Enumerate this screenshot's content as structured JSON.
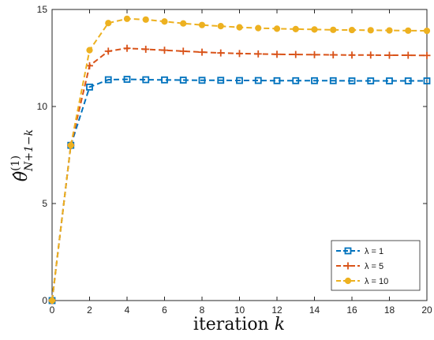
{
  "chart_data": {
    "type": "line",
    "xlabel": "iteration k",
    "ylabel": "θ̂(1) N+1−k",
    "xlim": [
      0,
      20
    ],
    "ylim": [
      0,
      15
    ],
    "xticks": [
      0,
      2,
      4,
      6,
      8,
      10,
      12,
      14,
      16,
      18,
      20
    ],
    "yticks": [
      0,
      5,
      10,
      15
    ],
    "grid": false,
    "legend_position": "bottom-right",
    "x": [
      0,
      1,
      2,
      3,
      4,
      5,
      6,
      7,
      8,
      9,
      10,
      11,
      12,
      13,
      14,
      15,
      16,
      17,
      18,
      19,
      20
    ],
    "series": [
      {
        "name": "λ = 1",
        "color": "#0072BD",
        "marker": "square",
        "values": [
          0,
          8.0,
          11.0,
          11.38,
          11.4,
          11.38,
          11.37,
          11.36,
          11.35,
          11.35,
          11.34,
          11.34,
          11.33,
          11.33,
          11.33,
          11.33,
          11.32,
          11.32,
          11.32,
          11.32,
          11.32
        ]
      },
      {
        "name": "λ = 5",
        "color": "#D95319",
        "marker": "plus",
        "values": [
          0,
          8.0,
          12.1,
          12.85,
          13.0,
          12.95,
          12.9,
          12.85,
          12.8,
          12.76,
          12.73,
          12.71,
          12.69,
          12.68,
          12.67,
          12.66,
          12.65,
          12.65,
          12.64,
          12.64,
          12.63
        ]
      },
      {
        "name": "λ = 10",
        "color": "#EDB120",
        "marker": "circle",
        "values": [
          0,
          8.0,
          12.9,
          14.3,
          14.52,
          14.48,
          14.38,
          14.28,
          14.2,
          14.14,
          14.08,
          14.04,
          14.01,
          13.99,
          13.97,
          13.95,
          13.94,
          13.93,
          13.92,
          13.91,
          13.9
        ]
      }
    ]
  }
}
